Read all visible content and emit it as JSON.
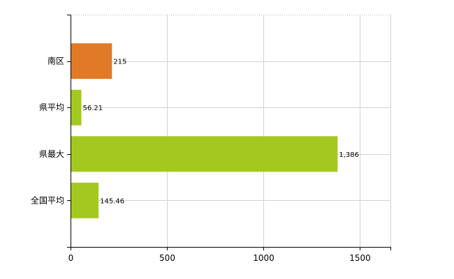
{
  "chart_data": {
    "type": "bar",
    "orientation": "horizontal",
    "categories": [
      "南区",
      "県平均",
      "県最大",
      "全国平均"
    ],
    "values": [
      215,
      56.21,
      1386,
      145.46
    ],
    "value_labels": [
      "215",
      "56.21",
      "1,386",
      "145.46"
    ],
    "bar_colors": [
      "#e07a26",
      "#a3c921",
      "#a3c921",
      "#a3c921"
    ],
    "x_ticks": [
      {
        "value": 0,
        "label": "0"
      },
      {
        "value": 500,
        "label": "500"
      },
      {
        "value": 1000,
        "label": "1000"
      },
      {
        "value": 1500,
        "label": "1500"
      }
    ],
    "xlim": [
      0,
      1660
    ],
    "grid": true,
    "title": "",
    "xlabel": "",
    "ylabel": ""
  }
}
